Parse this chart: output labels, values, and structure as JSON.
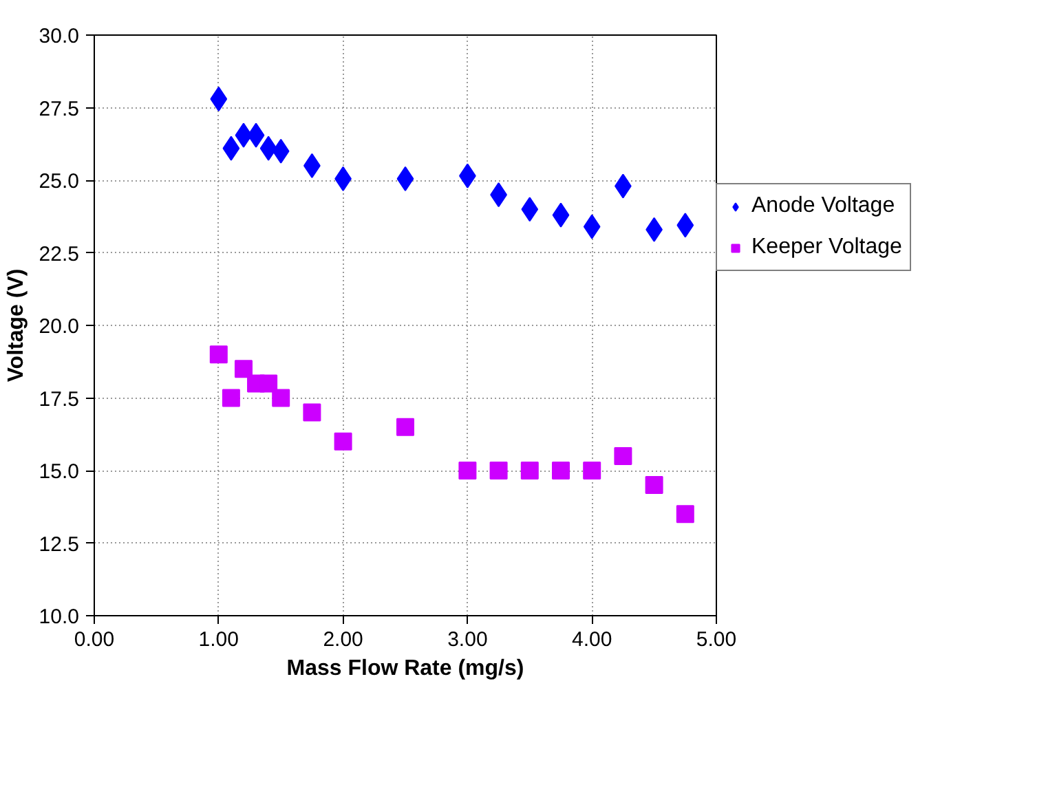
{
  "chart_data": {
    "type": "scatter",
    "xlabel": "Mass Flow Rate (mg/s)",
    "ylabel": "Voltage (V)",
    "x": [
      1.0,
      1.1,
      1.2,
      1.3,
      1.4,
      1.5,
      1.75,
      2.0,
      2.5,
      3.0,
      3.25,
      3.5,
      3.75,
      4.0,
      4.25,
      4.5,
      4.75
    ],
    "series": [
      {
        "name": "Anode Voltage",
        "color": "#0000ff",
        "marker": "diamond",
        "values": [
          27.8,
          26.1,
          26.55,
          26.55,
          26.1,
          26.0,
          25.5,
          25.05,
          25.05,
          25.15,
          24.5,
          24.0,
          23.8,
          23.4,
          24.8,
          23.3,
          23.45
        ]
      },
      {
        "name": "Keeper Voltage",
        "color": "#cc00ff",
        "marker": "square",
        "values": [
          19.0,
          17.5,
          18.5,
          18.0,
          18.0,
          17.5,
          17.0,
          16.0,
          16.5,
          15.0,
          15.0,
          15.0,
          15.0,
          15.0,
          15.5,
          14.5,
          13.5
        ]
      }
    ],
    "xlim": [
      0,
      5
    ],
    "ylim": [
      10,
      30
    ],
    "xticks": [
      {
        "value": 0,
        "label": "0.00"
      },
      {
        "value": 1,
        "label": "1.00"
      },
      {
        "value": 2,
        "label": "2.00"
      },
      {
        "value": 3,
        "label": "3.00"
      },
      {
        "value": 4,
        "label": "4.00"
      },
      {
        "value": 5,
        "label": "5.00"
      }
    ],
    "yticks": [
      {
        "value": 10,
        "label": "10.0"
      },
      {
        "value": 12.5,
        "label": "12.5"
      },
      {
        "value": 15,
        "label": "15.0"
      },
      {
        "value": 17.5,
        "label": "17.5"
      },
      {
        "value": 20,
        "label": "20.0"
      },
      {
        "value": 22.5,
        "label": "22.5"
      },
      {
        "value": 25,
        "label": "25.0"
      },
      {
        "value": 27.5,
        "label": "27.5"
      },
      {
        "value": 30,
        "label": "30.0"
      }
    ],
    "grid": true,
    "legend": "right"
  }
}
